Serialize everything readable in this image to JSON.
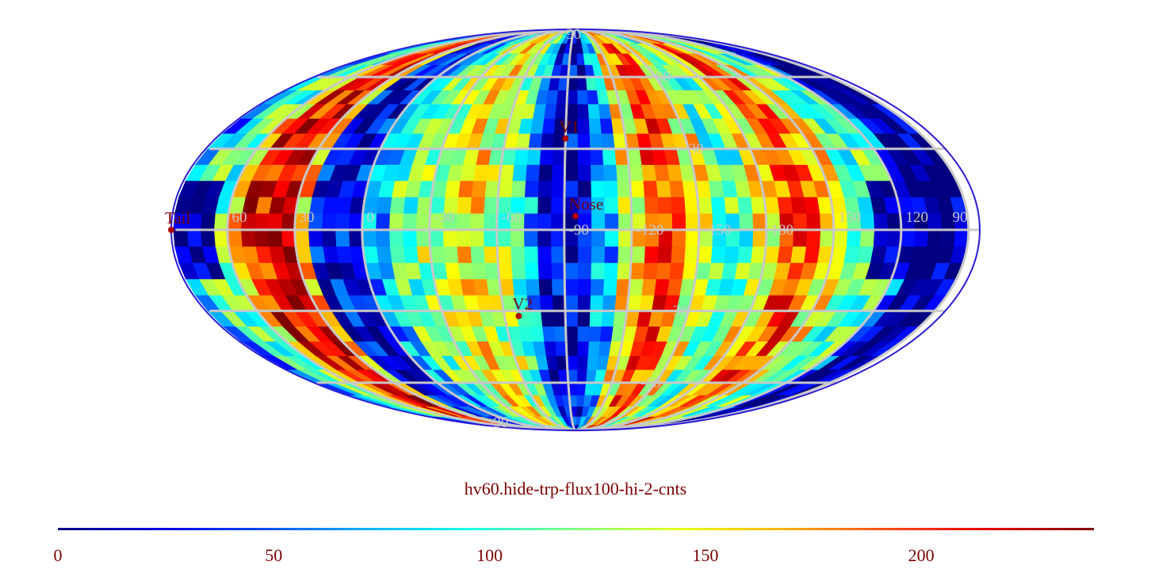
{
  "title": "hv60.hide-trp-flux100-hi-2-cnts",
  "colorbar": {
    "min": 0,
    "max": 240,
    "ticks": [
      "0",
      "50",
      "100",
      "150",
      "200"
    ],
    "tick_values": [
      0,
      50,
      100,
      150,
      200
    ],
    "colormap": "jet"
  },
  "projection": "Mollweide (Aitoff-style) all-sky",
  "longitude_labels": [
    "60",
    "30",
    "0",
    "-30",
    "-60",
    "-90",
    "-120",
    "-150",
    "180",
    "150",
    "120",
    "90"
  ],
  "longitude_values": [
    60,
    30,
    0,
    -30,
    -60,
    -90,
    -120,
    -150,
    180,
    150,
    120,
    90
  ],
  "latitude_labels": [
    "90",
    "60",
    "30",
    "-30",
    "-60",
    "-90"
  ],
  "latitude_values": [
    90,
    60,
    30,
    -30,
    -60,
    -90
  ],
  "markers": [
    {
      "label": "V1",
      "lon": -90,
      "lat": 34
    },
    {
      "label": "Nose",
      "lon": -95,
      "lat": 5
    },
    {
      "label": "V2",
      "lon": -67,
      "lat": -32
    },
    {
      "label": "Tail",
      "lon": 85,
      "lat": 0
    }
  ],
  "colors": {
    "text": "#7a0000",
    "grid": "#c8c8c8",
    "marker": "#b00000"
  },
  "chart_data": {
    "type": "heatmap",
    "title": "hv60.hide-trp-flux100-hi-2-cnts",
    "value_range": [
      0,
      240
    ],
    "note_bands": [
      {
        "lon_center": 40,
        "level": 210
      },
      {
        "lon_center": 10,
        "level": 30
      },
      {
        "lon_center": -45,
        "level": 150
      },
      {
        "lon_center": -92,
        "level": 25
      },
      {
        "lon_center": -135,
        "level": 190
      },
      {
        "lon_center": 165,
        "level": 190
      },
      {
        "lon_center": 100,
        "level": 5
      }
    ]
  }
}
